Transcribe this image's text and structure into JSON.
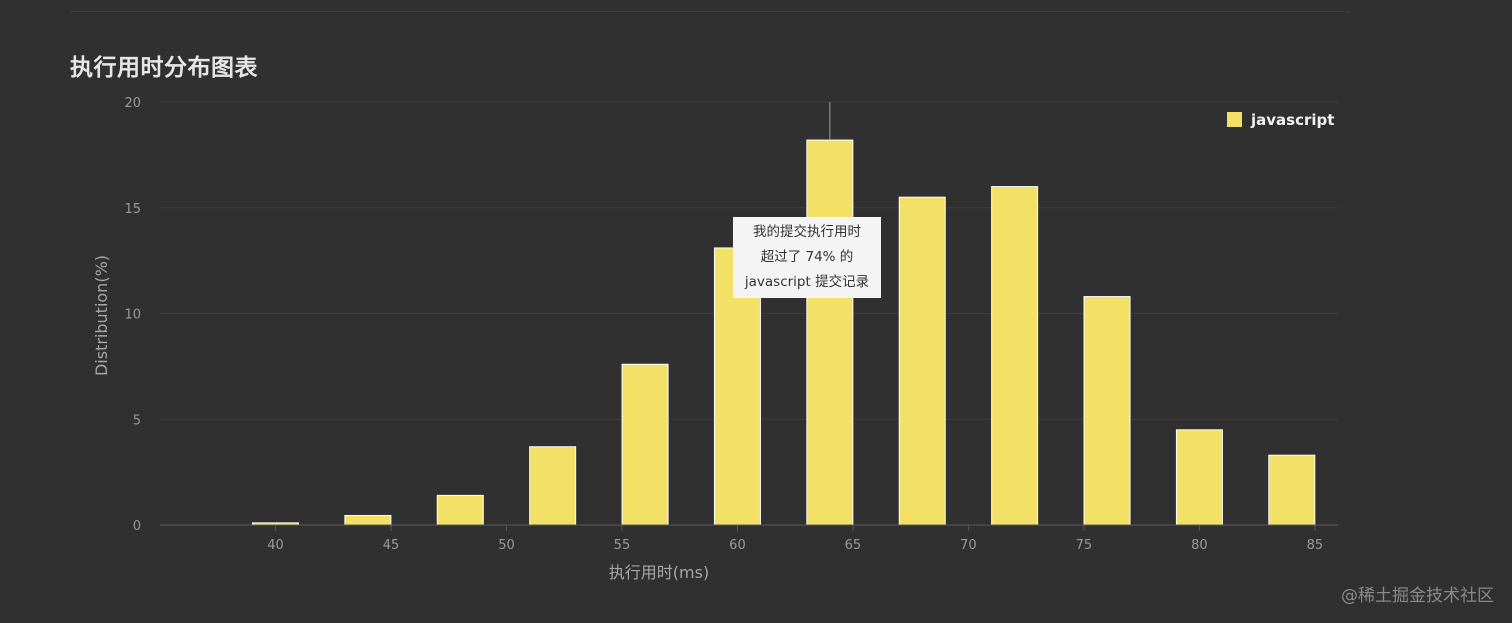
{
  "title": "执行用时分布图表",
  "chart_data": {
    "type": "bar",
    "x": [
      40,
      44,
      48,
      52,
      56,
      60,
      64,
      68,
      72,
      76,
      80,
      84
    ],
    "series": [
      {
        "name": "javascript",
        "values": [
          0.1,
          0.45,
          1.4,
          3.7,
          7.6,
          13.1,
          18.2,
          15.5,
          16.0,
          10.8,
          4.5,
          3.3
        ]
      }
    ],
    "xticks": [
      40,
      45,
      50,
      55,
      60,
      65,
      70,
      75,
      80,
      85
    ],
    "yticks": [
      0,
      5,
      10,
      15,
      20
    ],
    "xlim": [
      35,
      86
    ],
    "ylim": [
      0,
      20
    ],
    "xlabel": "执行用时(ms)",
    "ylabel": "Distribution(%)",
    "grid": true,
    "legend_position": "top-right",
    "bar_color": "#f2e067",
    "marker_x": 64,
    "tooltip_lines": [
      "我的提交执行用时",
      "超过了 74% 的",
      "javascript 提交记录"
    ]
  },
  "watermark": "@稀土掘金技术社区"
}
